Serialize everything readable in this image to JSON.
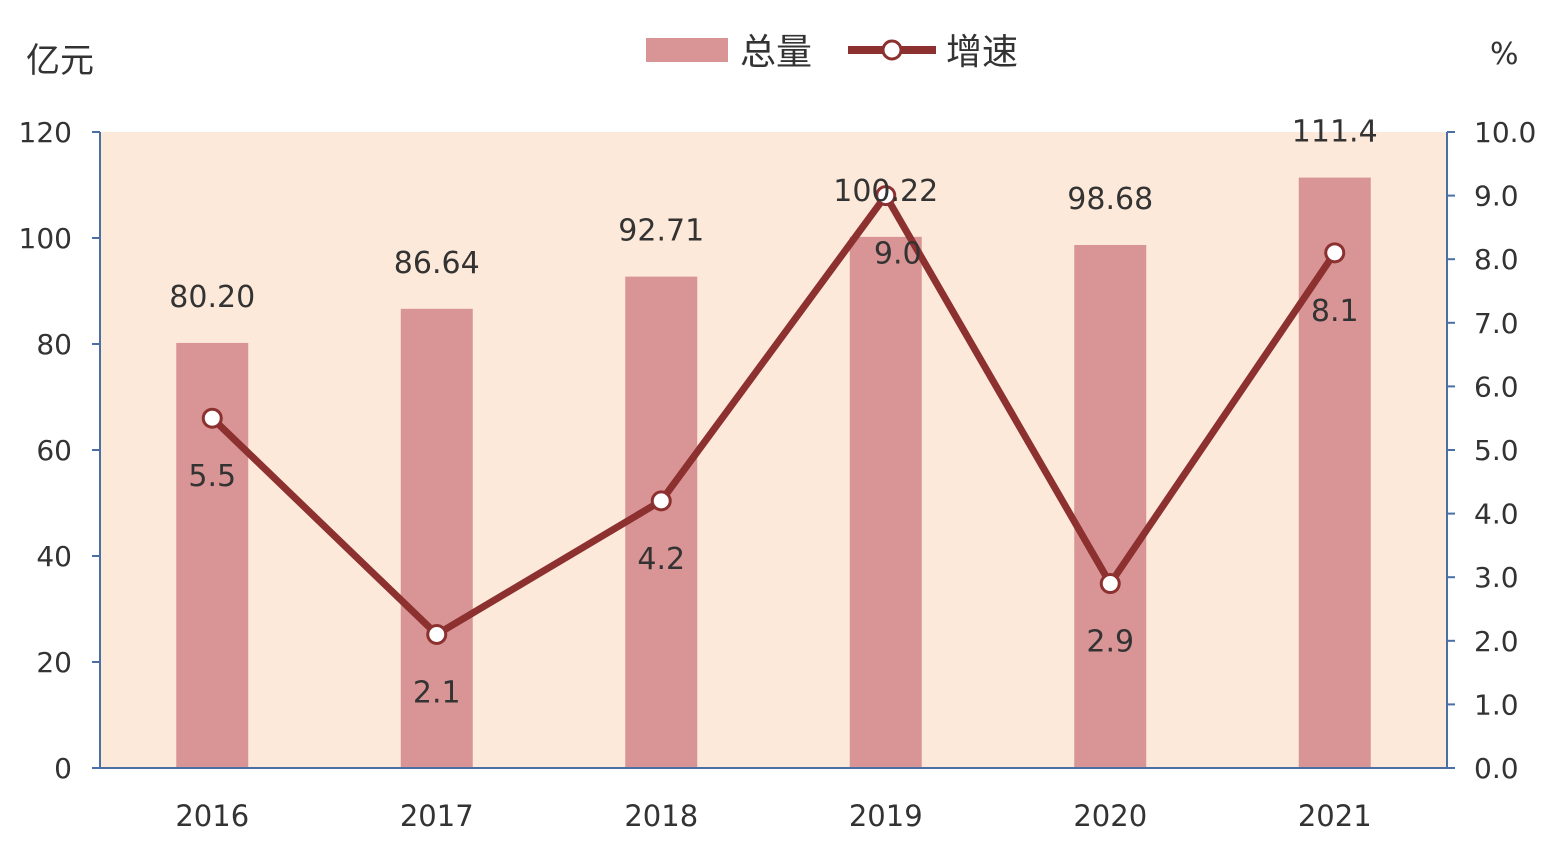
{
  "chart_data": {
    "type": "bar",
    "categories": [
      "2016",
      "2017",
      "2018",
      "2019",
      "2020",
      "2021"
    ],
    "series": [
      {
        "name": "总量",
        "type": "bar",
        "axis": "left",
        "values": [
          80.2,
          86.64,
          92.71,
          100.22,
          98.68,
          111.4
        ],
        "labels": [
          "80.20",
          "86.64",
          "92.71",
          "100.22",
          "98.68",
          "111.4"
        ]
      },
      {
        "name": "增速",
        "type": "line",
        "axis": "right",
        "values": [
          5.5,
          2.1,
          4.2,
          9.0,
          2.9,
          8.1
        ],
        "labels": [
          "5.5",
          "2.1",
          "4.2",
          "9.0",
          "2.9",
          "8.1"
        ]
      }
    ],
    "y_left": {
      "label": "亿元",
      "min": 0,
      "max": 120,
      "ticks": [
        "0",
        "20",
        "40",
        "60",
        "80",
        "100",
        "120"
      ]
    },
    "y_right": {
      "label": "%",
      "min": 0,
      "max": 10,
      "ticks": [
        "0.0",
        "1.0",
        "2.0",
        "3.0",
        "4.0",
        "5.0",
        "6.0",
        "7.0",
        "8.0",
        "9.0",
        "10.0"
      ]
    },
    "legend": {
      "position": "top-center",
      "items": [
        "总量",
        "增速"
      ]
    },
    "grid": false,
    "colors": {
      "bar": "#d99595",
      "line": "#8c3030",
      "plot_bg": "#fde9d9",
      "axis": "#4a6fa5"
    }
  }
}
